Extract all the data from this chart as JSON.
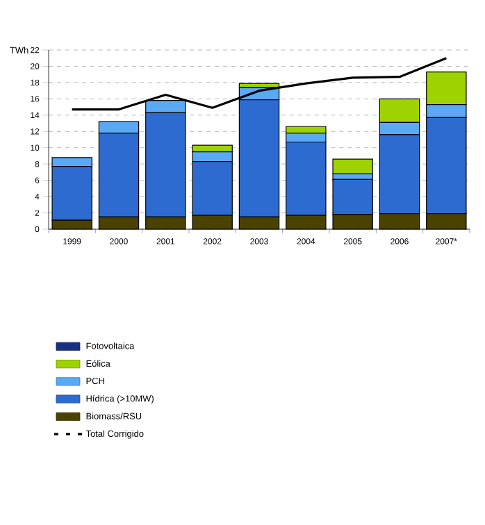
{
  "chart_data": {
    "type": "bar",
    "stacked": true,
    "ylabel": "TWh",
    "categories": [
      "1999",
      "2000",
      "2001",
      "2002",
      "2003",
      "2004",
      "2005",
      "2006",
      "2007*"
    ],
    "ylim": [
      0,
      22
    ],
    "yticks": [
      0,
      2,
      4,
      6,
      8,
      10,
      12,
      14,
      16,
      18,
      20,
      22
    ],
    "grid": "y",
    "legend": "bottom left",
    "series": [
      {
        "name": "Biomass/RSU",
        "color": "#4a4200",
        "values": [
          1.1,
          1.5,
          1.5,
          1.7,
          1.5,
          1.7,
          1.8,
          1.9,
          1.9
        ]
      },
      {
        "name": "Hídrica (>10MW)",
        "color": "#2e6bd0",
        "values": [
          6.6,
          10.3,
          12.8,
          6.6,
          14.4,
          9.0,
          4.3,
          9.7,
          11.8
        ]
      },
      {
        "name": "PCH",
        "color": "#5aa9f5",
        "values": [
          1.1,
          1.4,
          1.5,
          1.2,
          1.5,
          1.1,
          0.7,
          1.5,
          1.6
        ]
      },
      {
        "name": "Eólica",
        "color": "#9ed200",
        "values": [
          0,
          0,
          0,
          0.8,
          0.5,
          0.8,
          1.8,
          2.9,
          4.0
        ]
      },
      {
        "name": "Fotovoltaica",
        "color": "#1a3080",
        "values": [
          0,
          0,
          0,
          0,
          0,
          0,
          0,
          0,
          0
        ]
      },
      {
        "name": "Total Corrigido",
        "type": "line",
        "color": "#000000",
        "marker": "none",
        "line_style": "solid",
        "values": [
          14.7,
          14.7,
          16.5,
          14.9,
          17.0,
          17.9,
          18.6,
          18.7,
          21.0
        ]
      }
    ]
  }
}
